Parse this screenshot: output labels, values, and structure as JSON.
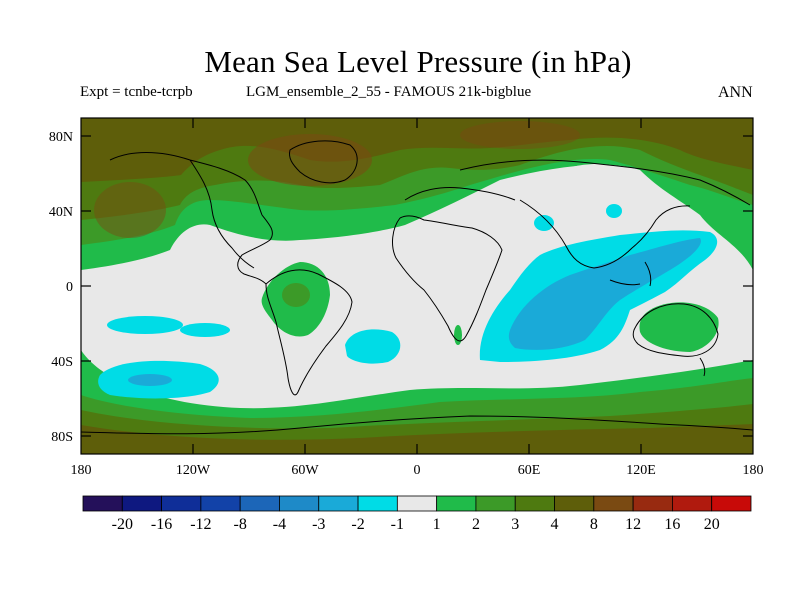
{
  "header": {
    "title": "Mean Sea Level Pressure (in hPa)",
    "expt": "Expt = tcnbe-tcrpb",
    "run": "LGM_ensemble_2_55 - FAMOUS 21k-bigblue",
    "season": "ANN"
  },
  "map": {
    "lat_labels": [
      "80N",
      "40N",
      "0",
      "40S",
      "80S"
    ],
    "lon_labels": [
      "180",
      "120W",
      "60W",
      "0",
      "60E",
      "120E",
      "180"
    ]
  },
  "legend": {
    "colors": [
      "#24105a",
      "#0e1880",
      "#0f2e98",
      "#1242a8",
      "#1c66b8",
      "#1e8ac8",
      "#1aaad8",
      "#00dce6",
      "#e8e8e8",
      "#20bb4a",
      "#3c9a28",
      "#4e7a10",
      "#5e5e0a",
      "#7a4a12",
      "#982a10",
      "#b01a0e",
      "#c80a08"
    ],
    "labels": [
      "-20",
      "-16",
      "-12",
      "-8",
      "-4",
      "-3",
      "-2",
      "-1",
      "1",
      "2",
      "3",
      "4",
      "8",
      "12",
      "16",
      "20"
    ]
  }
}
